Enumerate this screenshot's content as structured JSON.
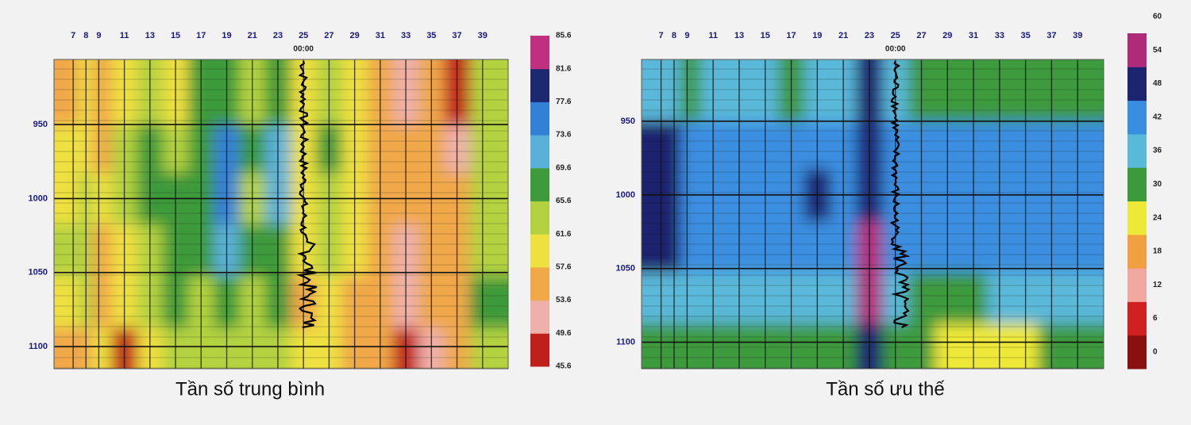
{
  "chart_data": [
    {
      "type": "heatmap",
      "title": "Tần số trung bình",
      "xticks": [
        7,
        8,
        9,
        11,
        13,
        15,
        17,
        19,
        21,
        23,
        25,
        27,
        29,
        31,
        33,
        35,
        37,
        39
      ],
      "xlim": [
        5.5,
        41
      ],
      "yticks": [
        950,
        1000,
        1050,
        1100
      ],
      "ylim": [
        906,
        1115
      ],
      "y": [
        935,
        965,
        1000,
        1035,
        1070,
        1105
      ],
      "z": [
        [
          56,
          59,
          57,
          60,
          63,
          61,
          67,
          66,
          65,
          67,
          59,
          62,
          60,
          55,
          53,
          56,
          48,
          64
        ],
        [
          58,
          60,
          56,
          62,
          66,
          63,
          67,
          74,
          66,
          70,
          58,
          66,
          60,
          56,
          54,
          55,
          50,
          63
        ],
        [
          60,
          62,
          58,
          62,
          66,
          66,
          66,
          75,
          65,
          70,
          59,
          65,
          59,
          55,
          54,
          57,
          56,
          62
        ],
        [
          62,
          63,
          57,
          60,
          65,
          67,
          68,
          72,
          66,
          68,
          58,
          63,
          58,
          56,
          53,
          56,
          57,
          64
        ],
        [
          60,
          62,
          56,
          58,
          64,
          66,
          65,
          68,
          65,
          66,
          57,
          60,
          57,
          55,
          52,
          55,
          56,
          66
        ],
        [
          57,
          55,
          58,
          47,
          61,
          63,
          64,
          65,
          62,
          64,
          59,
          58,
          56,
          54,
          46,
          53,
          55,
          64
        ]
      ],
      "levels": [
        45.6,
        49.6,
        53.6,
        57.6,
        61.6,
        65.6,
        69.6,
        73.6,
        77.6,
        81.6,
        85.6
      ],
      "colors": [
        "#c0201c",
        "#eeb0a8",
        "#f0a848",
        "#eee040",
        "#b4d240",
        "#3e9a3a",
        "#5ab0d8",
        "#3480d6",
        "#1c2870",
        "#c02f80"
      ],
      "marker": {
        "x": 25,
        "label": "00:00"
      }
    },
    {
      "type": "heatmap",
      "title": "Tần số ưu thế",
      "xticks": [
        7,
        8,
        9,
        11,
        13,
        15,
        17,
        19,
        21,
        23,
        25,
        27,
        29,
        31,
        33,
        35,
        37,
        39
      ],
      "xlim": [
        5.5,
        41
      ],
      "yticks": [
        950,
        1000,
        1050,
        1100
      ],
      "ylim": [
        908,
        1118
      ],
      "y": [
        935,
        965,
        1000,
        1035,
        1070,
        1105
      ],
      "z": [
        [
          40,
          40,
          34,
          40,
          40,
          40,
          34,
          40,
          40,
          52,
          40,
          35,
          34,
          34,
          34,
          34,
          34,
          35
        ],
        [
          50,
          50,
          46,
          46,
          46,
          46,
          46,
          46,
          46,
          52,
          46,
          46,
          46,
          46,
          46,
          46,
          46,
          45
        ],
        [
          50,
          50,
          47,
          47,
          47,
          47,
          47,
          50,
          47,
          53,
          47,
          47,
          47,
          47,
          47,
          47,
          47,
          47
        ],
        [
          50,
          50,
          46,
          46,
          46,
          46,
          46,
          46,
          46,
          58,
          46,
          43,
          43,
          43,
          43,
          43,
          43,
          43
        ],
        [
          40,
          40,
          40,
          40,
          40,
          40,
          40,
          40,
          40,
          58,
          36,
          34,
          34,
          34,
          36,
          36,
          36,
          36
        ],
        [
          34,
          34,
          34,
          34,
          34,
          34,
          34,
          34,
          34,
          50,
          30,
          32,
          28,
          28,
          28,
          28,
          30,
          30
        ]
      ],
      "levels": [
        0,
        6,
        12,
        18,
        24,
        30,
        36,
        42,
        48,
        54,
        60
      ],
      "colors": [
        "#8a1010",
        "#d02020",
        "#f0a8a0",
        "#f0a040",
        "#eee838",
        "#3c9a3c",
        "#5ab8d8",
        "#3a8ee0",
        "#1c2470",
        "#b02a7a"
      ],
      "marker": {
        "x": 25,
        "label": "00:00"
      }
    }
  ]
}
